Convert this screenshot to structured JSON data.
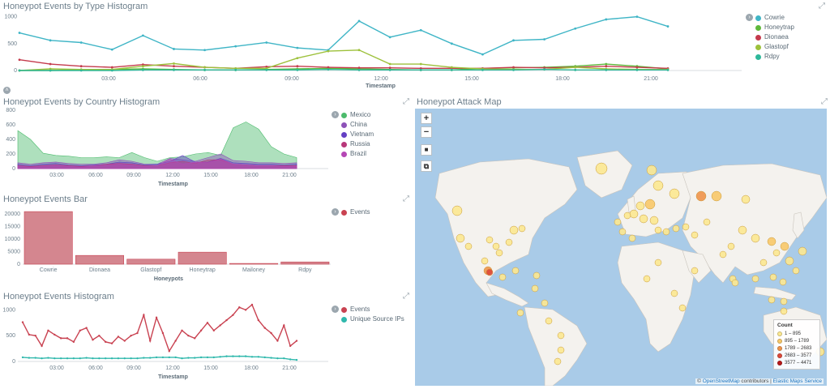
{
  "panels": {
    "type_hist": {
      "title": "Honeypot Events by Type Histogram",
      "legend": [
        {
          "label": "Cowrie",
          "color": "#3fb5c6"
        },
        {
          "label": "Honeytrap",
          "color": "#5fb83b"
        },
        {
          "label": "Dionaea",
          "color": "#c43a4c"
        },
        {
          "label": "Glastopf",
          "color": "#9dc13b"
        },
        {
          "label": "Rdpy",
          "color": "#2eb89a"
        }
      ],
      "y_ticks": [
        "1000",
        "500",
        "0"
      ],
      "x_ticks": [
        "03:00",
        "06:00",
        "09:00",
        "12:00",
        "15:00",
        "18:00",
        "21:00"
      ],
      "xlabel": "Timestamp"
    },
    "country_hist": {
      "title": "Honeypot Events by Country Histogram",
      "legend": [
        {
          "label": "Mexico",
          "color": "#4cbb6c"
        },
        {
          "label": "China",
          "color": "#8d52b8"
        },
        {
          "label": "Vietnam",
          "color": "#6440c4"
        },
        {
          "label": "Russia",
          "color": "#b8387a"
        },
        {
          "label": "Brazil",
          "color": "#b547b5"
        }
      ],
      "y_ticks": [
        "800",
        "600",
        "400",
        "200",
        "0"
      ],
      "x_ticks": [
        "03:00",
        "06:00",
        "09:00",
        "12:00",
        "15:00",
        "18:00",
        "21:00"
      ],
      "xlabel": "Timestamp"
    },
    "events_bar": {
      "title": "Honeypot Events Bar",
      "legend": [
        {
          "label": "Events",
          "color": "#c94251"
        }
      ],
      "y_ticks": [
        "20000",
        "15000",
        "10000",
        "5000",
        "0"
      ],
      "xlabel": "Honeypots"
    },
    "events_hist": {
      "title": "Honeypot Events Histogram",
      "legend": [
        {
          "label": "Events",
          "color": "#c94251"
        },
        {
          "label": "Unique Source IPs",
          "color": "#2fb8ac"
        }
      ],
      "y_ticks": [
        "1000",
        "500",
        "0"
      ],
      "x_ticks": [
        "03:00",
        "06:00",
        "09:00",
        "12:00",
        "15:00",
        "18:00",
        "21:00"
      ],
      "xlabel": "Timestamp"
    },
    "attack_map": {
      "title": "Honeypot Attack Map",
      "zoom_in": "+",
      "zoom_out": "−",
      "legend_title": "Count",
      "legend": [
        {
          "label": "1 – 895",
          "color": "#fce890"
        },
        {
          "label": "895 – 1789",
          "color": "#f8c868"
        },
        {
          "label": "1789 – 2683",
          "color": "#f0944a"
        },
        {
          "label": "2683 – 3577",
          "color": "#dd4a3a"
        },
        {
          "label": "3577 – 4471",
          "color": "#b81818"
        }
      ],
      "attribution_prefix": "©",
      "attribution_osm": "OpenStreetMap",
      "attribution_mid": "contributors |",
      "attribution_ems": "Elastic Maps Service"
    }
  },
  "chart_data": [
    {
      "type": "line",
      "title": "Honeypot Events by Type Histogram",
      "xlabel": "Timestamp",
      "ylabel": "",
      "ylim": [
        0,
        1100
      ],
      "x": [
        "00:30",
        "01:30",
        "02:30",
        "03:30",
        "04:30",
        "05:30",
        "06:30",
        "07:30",
        "08:30",
        "09:30",
        "10:30",
        "11:30",
        "12:30",
        "13:30",
        "14:30",
        "15:30",
        "16:30",
        "17:30",
        "18:30",
        "19:30",
        "20:30",
        "21:30"
      ],
      "series": [
        {
          "name": "Cowrie",
          "values": [
            700,
            560,
            520,
            390,
            650,
            400,
            380,
            450,
            520,
            420,
            380,
            920,
            620,
            750,
            500,
            300,
            560,
            580,
            780,
            950,
            1000,
            820
          ]
        },
        {
          "name": "Honeytrap",
          "values": [
            0,
            0,
            10,
            20,
            30,
            20,
            10,
            10,
            20,
            30,
            40,
            30,
            20,
            10,
            10,
            40,
            50,
            60,
            80,
            120,
            80,
            30
          ]
        },
        {
          "name": "Dionaea",
          "values": [
            200,
            120,
            80,
            60,
            110,
            80,
            60,
            40,
            70,
            80,
            60,
            50,
            50,
            40,
            40,
            40,
            60,
            50,
            60,
            80,
            60,
            40
          ]
        },
        {
          "name": "Glastopf",
          "values": [
            0,
            30,
            20,
            20,
            80,
            130,
            60,
            40,
            40,
            230,
            360,
            380,
            120,
            120,
            60,
            30,
            20,
            20,
            60,
            30,
            20,
            20
          ]
        },
        {
          "name": "Rdpy",
          "values": [
            0,
            0,
            0,
            0,
            10,
            10,
            10,
            10,
            10,
            10,
            20,
            10,
            10,
            10,
            10,
            10,
            10,
            20,
            10,
            10,
            10,
            10
          ]
        }
      ]
    },
    {
      "type": "area",
      "title": "Honeypot Events by Country Histogram",
      "xlabel": "Timestamp",
      "ylabel": "",
      "ylim": [
        0,
        800
      ],
      "x": [
        "00:00",
        "01:00",
        "02:00",
        "03:00",
        "04:00",
        "05:00",
        "06:00",
        "07:00",
        "08:00",
        "09:00",
        "10:00",
        "11:00",
        "12:00",
        "13:00",
        "14:00",
        "15:00",
        "16:00",
        "17:00",
        "18:00",
        "19:00",
        "20:00",
        "21:00",
        "22:00"
      ],
      "series": [
        {
          "name": "Mexico",
          "values": [
            520,
            400,
            210,
            180,
            170,
            150,
            150,
            160,
            150,
            220,
            150,
            100,
            150,
            160,
            200,
            220,
            180,
            560,
            640,
            540,
            300,
            200,
            150
          ]
        },
        {
          "name": "China",
          "values": [
            80,
            60,
            80,
            90,
            70,
            60,
            60,
            80,
            120,
            100,
            60,
            60,
            140,
            120,
            100,
            150,
            200,
            110,
            100,
            80,
            80,
            70,
            80
          ]
        },
        {
          "name": "Vietnam",
          "values": [
            60,
            40,
            60,
            70,
            50,
            40,
            50,
            60,
            90,
            80,
            50,
            60,
            100,
            180,
            90,
            90,
            140,
            80,
            70,
            60,
            60,
            50,
            60
          ]
        },
        {
          "name": "Russia",
          "values": [
            40,
            30,
            40,
            50,
            40,
            30,
            40,
            60,
            70,
            60,
            40,
            40,
            80,
            100,
            70,
            120,
            120,
            60,
            50,
            40,
            40,
            40,
            40
          ]
        },
        {
          "name": "Brazil",
          "values": [
            30,
            20,
            30,
            40,
            30,
            20,
            40,
            50,
            60,
            50,
            30,
            40,
            130,
            60,
            90,
            80,
            130,
            60,
            50,
            40,
            40,
            30,
            30
          ]
        }
      ]
    },
    {
      "type": "bar",
      "title": "Honeypot Events Bar",
      "xlabel": "Honeypots",
      "ylabel": "",
      "ylim": [
        0,
        22000
      ],
      "categories": [
        "Cowrie",
        "Dionaea",
        "Glastopf",
        "Honeytrap",
        "Mailoney",
        "Rdpy"
      ],
      "series": [
        {
          "name": "Events",
          "values": [
            21000,
            3500,
            2000,
            4800,
            300,
            900
          ]
        }
      ]
    },
    {
      "type": "line",
      "title": "Honeypot Events Histogram",
      "xlabel": "Timestamp",
      "ylabel": "",
      "ylim": [
        0,
        1100
      ],
      "x": [
        "00:00",
        "00:30",
        "01:00",
        "01:30",
        "02:00",
        "02:30",
        "03:00",
        "03:30",
        "04:00",
        "04:30",
        "05:00",
        "05:30",
        "06:00",
        "06:30",
        "07:00",
        "07:30",
        "08:00",
        "08:30",
        "09:00",
        "09:30",
        "10:00",
        "10:30",
        "11:00",
        "11:30",
        "12:00",
        "12:30",
        "13:00",
        "13:30",
        "14:00",
        "14:30",
        "15:00",
        "15:30",
        "16:00",
        "16:30",
        "17:00",
        "17:30",
        "18:00",
        "18:30",
        "19:00",
        "19:30",
        "20:00",
        "20:30",
        "21:00",
        "21:30"
      ],
      "series": [
        {
          "name": "Events",
          "values": [
            760,
            520,
            500,
            300,
            600,
            520,
            450,
            450,
            380,
            600,
            650,
            420,
            500,
            380,
            350,
            480,
            400,
            500,
            550,
            900,
            400,
            850,
            550,
            200,
            400,
            600,
            500,
            450,
            600,
            750,
            600,
            700,
            800,
            900,
            1050,
            1000,
            1100,
            800,
            650,
            550,
            400,
            700,
            300,
            400
          ]
        },
        {
          "name": "Unique Source IPs",
          "values": [
            80,
            70,
            70,
            60,
            70,
            60,
            60,
            60,
            60,
            60,
            70,
            60,
            60,
            60,
            60,
            60,
            60,
            60,
            60,
            70,
            70,
            80,
            80,
            80,
            80,
            60,
            70,
            70,
            80,
            80,
            80,
            90,
            100,
            100,
            100,
            100,
            90,
            90,
            80,
            70,
            60,
            60,
            40,
            30
          ]
        }
      ]
    }
  ]
}
